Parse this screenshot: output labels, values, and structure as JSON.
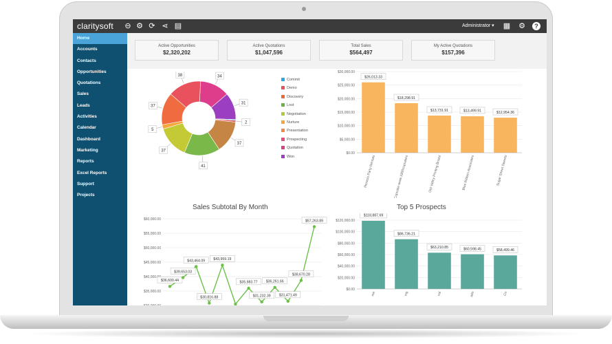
{
  "app": {
    "logo": "claritysoft",
    "user_menu": "Administrator ▾"
  },
  "toolbar": {
    "icons": [
      "minus-circle-icon",
      "gear-icon",
      "refresh-icon",
      "share-icon",
      "table-icon"
    ],
    "right_icons": [
      "grid-icon",
      "gear-icon",
      "help-icon"
    ]
  },
  "sidebar": {
    "items": [
      "Home",
      "Accounts",
      "Contacts",
      "Opportunities",
      "Quotations",
      "Sales",
      "Leads",
      "Activities",
      "Calendar",
      "Dashboard",
      "Marketing",
      "Reports",
      "Excel Reports",
      "Support",
      "Projects"
    ],
    "active": "Home"
  },
  "kpis": [
    {
      "label": "Active Opportunities",
      "value": "$2,320,202"
    },
    {
      "label": "Active Quotations",
      "value": "$1,047,596"
    },
    {
      "label": "Total Sales",
      "value": "$564,497"
    },
    {
      "label": "My Active Quotations",
      "value": "$157,396"
    }
  ],
  "colors": {
    "sidebar": "#0f4f6f",
    "active": "#4aa3d9",
    "orange_bar": "#f9b55e",
    "teal_bar": "#5aa79b",
    "line": "#6cc04a"
  },
  "chart_data": [
    {
      "type": "pie",
      "title": "",
      "legend_position": "right",
      "categories": [
        "Commit",
        "Demo",
        "Discovery",
        "Lost",
        "Negotiation",
        "Nurture",
        "Presentation",
        "Prospecting",
        "Quotation",
        "Won"
      ],
      "colors": [
        "#2fa8e0",
        "#e4535a",
        "#e86a3e",
        "#69b346",
        "#b6c63a",
        "#f7a43c",
        "#f28a45",
        "#e64c84",
        "#de3d8c",
        "#9b3fc0"
      ],
      "slices": [
        {
          "label": "34",
          "value": 34,
          "color": "#de3d8c"
        },
        {
          "label": "31",
          "value": 31,
          "color": "#9b3fc0"
        },
        {
          "label": "",
          "value": 1,
          "color": "#2fa8e0"
        },
        {
          "label": "2",
          "value": 2,
          "color": "#e4535a"
        },
        {
          "label": "37",
          "value": 37,
          "color": "#c58545"
        },
        {
          "label": "41",
          "value": 41,
          "color": "#7ab84a"
        },
        {
          "label": "37",
          "value": 37,
          "color": "#c4ca35"
        },
        {
          "label": "5",
          "value": 5,
          "color": "#f7a43c"
        },
        {
          "label": "37",
          "value": 37,
          "color": "#f06b3f"
        },
        {
          "label": "38",
          "value": 38,
          "color": "#e9515d"
        }
      ]
    },
    {
      "type": "bar",
      "title": "",
      "categories": [
        "Horacio Party Rentals",
        "1 800 Cupcake-www.1800cupcakes",
        "Old Valley Printing Bristol",
        "Blue Ribbon Associates",
        "Sugar Street Sweets"
      ],
      "values": [
        26013.33,
        18298.91,
        13731.91,
        13499.91,
        12954.36
      ],
      "data_labels": [
        "$26,013.33",
        "$18,298.91",
        "$13,731.91",
        "$13,499.91",
        "$12,954.36"
      ],
      "ylim": [
        0,
        30000
      ],
      "yticks": [
        "$0.00",
        "$5,000.00",
        "$10,000.00",
        "$15,000.00",
        "$20,000.00",
        "$25,000.00",
        "$30,000.00"
      ],
      "color": "#f9b55e"
    },
    {
      "type": "line",
      "title": "Sales Subtotal By Month",
      "values": [
        36600.44,
        39653.03,
        43464.09,
        30816.88,
        43959.19,
        30500.0,
        35983.77,
        31232.39,
        36261.66,
        31471.49,
        38670.28,
        57263.89
      ],
      "data_labels": [
        "$36,600.44",
        "$39,653.03",
        "$43,464.09",
        "$30,816.88",
        "$43,959.19",
        "",
        "$35,983.77",
        "$31,232.39",
        "$36,261.66",
        "$31,471.49",
        "$38,670.28",
        "$57,263.89"
      ],
      "ylim": [
        30000,
        60000
      ],
      "yticks": [
        "$30,000.00",
        "$35,000.00",
        "$40,000.00",
        "$45,000.00",
        "$50,000.00",
        "$55,000.00",
        "$60,000.00"
      ],
      "color": "#6cc04a"
    },
    {
      "type": "bar",
      "title": "Top 5 Prospects",
      "categories": [
        "me",
        "ing",
        "nal",
        "ado",
        "Co"
      ],
      "values": [
        118887.69,
        86736.21,
        63210.85,
        60598.45,
        58499.46
      ],
      "data_labels": [
        "$118,887.69",
        "$86,736.21",
        "$63,210.85",
        "$60,598.45",
        "$58,499.46"
      ],
      "ylim": [
        0,
        120000
      ],
      "yticks": [
        "$0.00",
        "$20,000.00",
        "$40,000.00",
        "$60,000.00",
        "$80,000.00",
        "$100,000.00",
        "$120,000.00"
      ],
      "color": "#5aa79b"
    }
  ]
}
